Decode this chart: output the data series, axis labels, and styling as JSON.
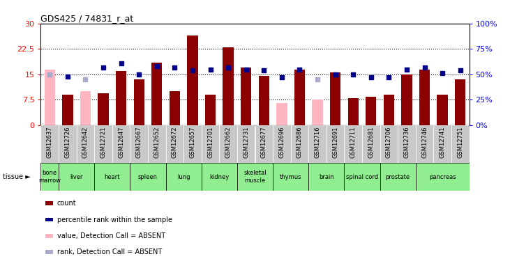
{
  "title": "GDS425 / 74831_r_at",
  "samples": [
    "GSM12637",
    "GSM12726",
    "GSM12642",
    "GSM12721",
    "GSM12647",
    "GSM12667",
    "GSM12652",
    "GSM12672",
    "GSM12657",
    "GSM12701",
    "GSM12662",
    "GSM12731",
    "GSM12677",
    "GSM12696",
    "GSM12686",
    "GSM12716",
    "GSM12691",
    "GSM12711",
    "GSM12681",
    "GSM12706",
    "GSM12736",
    "GSM12746",
    "GSM12741",
    "GSM12751"
  ],
  "bar_values": [
    16.5,
    9.0,
    10.0,
    9.5,
    16.0,
    13.5,
    18.5,
    10.0,
    26.5,
    9.0,
    23.0,
    17.0,
    14.5,
    6.5,
    16.5,
    7.5,
    15.5,
    8.0,
    8.5,
    9.0,
    15.0,
    16.5,
    9.0,
    13.5
  ],
  "bar_absent": [
    true,
    false,
    true,
    false,
    false,
    false,
    false,
    false,
    false,
    false,
    false,
    false,
    false,
    true,
    false,
    true,
    false,
    false,
    false,
    false,
    false,
    false,
    false,
    false
  ],
  "percentile_values": [
    50,
    48,
    45,
    57,
    61,
    50,
    58,
    57,
    54,
    55,
    57,
    55,
    54,
    47,
    55,
    45,
    50,
    50,
    47,
    47,
    55,
    57,
    51,
    54
  ],
  "percentile_absent": [
    true,
    false,
    true,
    false,
    false,
    false,
    false,
    false,
    false,
    false,
    false,
    false,
    false,
    false,
    false,
    true,
    false,
    false,
    false,
    false,
    false,
    false,
    false,
    false
  ],
  "tissues": [
    {
      "name": "bone\nmarrow",
      "start": 0,
      "end": 0,
      "color": "#90EE90"
    },
    {
      "name": "liver",
      "start": 1,
      "end": 2,
      "color": "#90EE90"
    },
    {
      "name": "heart",
      "start": 3,
      "end": 4,
      "color": "#90EE90"
    },
    {
      "name": "spleen",
      "start": 5,
      "end": 6,
      "color": "#90EE90"
    },
    {
      "name": "lung",
      "start": 7,
      "end": 8,
      "color": "#90EE90"
    },
    {
      "name": "kidney",
      "start": 9,
      "end": 10,
      "color": "#90EE90"
    },
    {
      "name": "skeletal\nmuscle",
      "start": 11,
      "end": 12,
      "color": "#90EE90"
    },
    {
      "name": "thymus",
      "start": 13,
      "end": 14,
      "color": "#90EE90"
    },
    {
      "name": "brain",
      "start": 15,
      "end": 16,
      "color": "#90EE90"
    },
    {
      "name": "spinal cord",
      "start": 17,
      "end": 18,
      "color": "#90EE90"
    },
    {
      "name": "prostate",
      "start": 19,
      "end": 20,
      "color": "#90EE90"
    },
    {
      "name": "pancreas",
      "start": 21,
      "end": 23,
      "color": "#90EE90"
    }
  ],
  "ylim_left": [
    0,
    30
  ],
  "ylim_right": [
    0,
    100
  ],
  "yticks_left": [
    0,
    7.5,
    15,
    22.5,
    30
  ],
  "yticks_right": [
    0,
    25,
    50,
    75,
    100
  ],
  "bar_color": "#8B0000",
  "bar_absent_color": "#FFB6C1",
  "dot_color": "#00008B",
  "dot_absent_color": "#AAAACC",
  "xtick_bg": "#C8C8C8",
  "legend_items": [
    {
      "label": "count",
      "color": "#8B0000"
    },
    {
      "label": "percentile rank within the sample",
      "color": "#00008B"
    },
    {
      "label": "value, Detection Call = ABSENT",
      "color": "#FFB6C1"
    },
    {
      "label": "rank, Detection Call = ABSENT",
      "color": "#AAAACC"
    }
  ]
}
